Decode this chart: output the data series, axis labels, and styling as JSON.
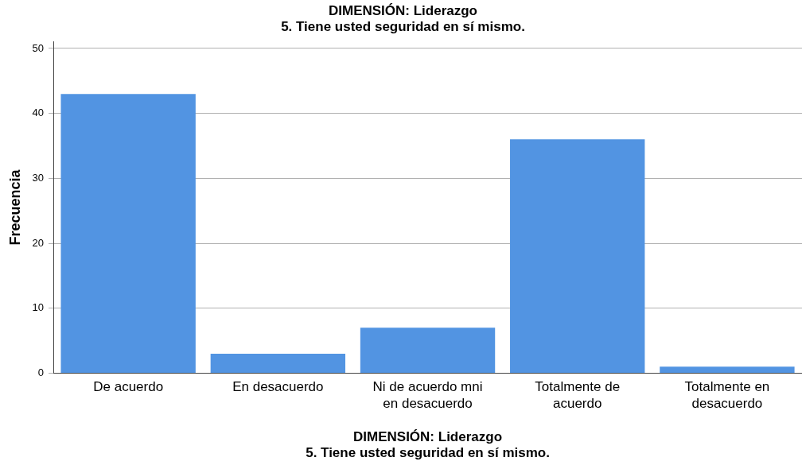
{
  "chart_data": {
    "type": "bar",
    "title": "DIMENSIÓN: Liderazgo\n5. Tiene usted seguridad en sí mismo.",
    "xlabel": "DIMENSIÓN: Liderazgo\n5. Tiene usted seguridad en sí mismo.",
    "ylabel": "Frecuencia",
    "categories": [
      "De acuerdo",
      "En desacuerdo",
      "Ni de acuerdo mni en desacuerdo",
      "Totalmente de acuerdo",
      "Totalmente en desacuerdo"
    ],
    "values": [
      43,
      3,
      7,
      36,
      1
    ],
    "color": "#5294e2",
    "ylim": [
      0,
      51
    ],
    "yticks": [
      0,
      10,
      20,
      30,
      40,
      50
    ],
    "grid": "y",
    "legend": false
  }
}
